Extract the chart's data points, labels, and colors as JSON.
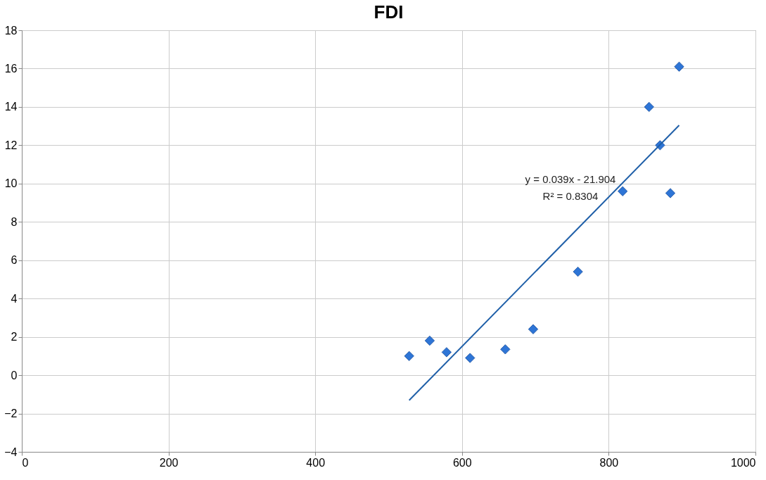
{
  "chart_data": {
    "type": "scatter",
    "title": "FDI",
    "xlim": [
      0,
      1000
    ],
    "xticks": [
      0,
      200,
      400,
      600,
      800,
      1000
    ],
    "ylim": [
      -4,
      18
    ],
    "yticks": [
      -4,
      -2,
      0,
      2,
      4,
      6,
      8,
      10,
      12,
      14,
      16,
      18
    ],
    "grid": true,
    "series": [
      {
        "type": "scatter",
        "marker": "diamond",
        "color": "#2e75d6",
        "x": [
          528,
          556,
          579,
          611,
          659,
          697,
          758,
          819,
          855,
          870,
          884,
          896
        ],
        "values": [
          1.0,
          1.8,
          1.2,
          0.9,
          1.35,
          2.4,
          5.4,
          9.6,
          14.0,
          12.0,
          9.5,
          16.1
        ]
      },
      {
        "type": "line",
        "marker": "none",
        "color": "#1f5fa8",
        "line_style": "solid",
        "x": [
          528,
          896
        ],
        "values": [
          -1.31,
          13.04
        ]
      }
    ],
    "annotations": [
      "y = 0.039x - 21.904",
      "R² = 0.8304"
    ]
  }
}
